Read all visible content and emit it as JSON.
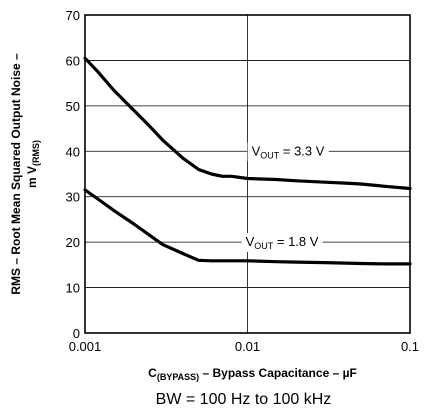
{
  "chart_data": {
    "type": "line",
    "x_scale": "log",
    "xlim": [
      0.001,
      0.1
    ],
    "ylim": [
      0,
      70
    ],
    "x_ticks": [
      0.001,
      0.01,
      0.1
    ],
    "x_tick_labels": [
      "0.001",
      "0.01",
      "0.1"
    ],
    "y_ticks": [
      0,
      10,
      20,
      30,
      40,
      50,
      60,
      70
    ],
    "y_tick_labels": [
      "0",
      "10",
      "20",
      "30",
      "40",
      "50",
      "60",
      "70"
    ],
    "grid": true,
    "xlabel": {
      "prefix": "C",
      "subscript": "(BYPASS)",
      "suffix": " – Bypass Capacitance – µF"
    },
    "ylabel": {
      "line1": "RMS – Root Mean Squared Output Noise –",
      "line2_prefix": "m V",
      "line2_subscript": "(RMS)"
    },
    "footnote": "BW = 100 Hz to 100 kHz",
    "series": [
      {
        "label_prefix": "V",
        "label_subscript": "OUT",
        "label_suffix": " = 3.3 V",
        "color": "#000000",
        "x": [
          0.001,
          0.0012,
          0.0015,
          0.002,
          0.0025,
          0.003,
          0.004,
          0.005,
          0.006,
          0.007,
          0.008,
          0.01,
          0.015,
          0.02,
          0.03,
          0.04,
          0.05,
          0.07,
          0.1
        ],
        "y": [
          60.5,
          57.5,
          53.5,
          49,
          45.5,
          42.5,
          38.5,
          36,
          35,
          34.5,
          34.5,
          34,
          33.8,
          33.5,
          33.2,
          33,
          32.8,
          32.3,
          31.8
        ]
      },
      {
        "label_prefix": "V",
        "label_subscript": "OUT",
        "label_suffix": " = 1.8 V",
        "color": "#000000",
        "x": [
          0.001,
          0.0012,
          0.0015,
          0.002,
          0.0025,
          0.003,
          0.004,
          0.005,
          0.006,
          0.008,
          0.01,
          0.015,
          0.02,
          0.03,
          0.05,
          0.07,
          0.1
        ],
        "y": [
          31.5,
          29.5,
          27,
          24,
          21.5,
          19.5,
          17.5,
          16,
          15.9,
          15.9,
          15.9,
          15.7,
          15.6,
          15.5,
          15.3,
          15.2,
          15.2
        ]
      }
    ]
  }
}
